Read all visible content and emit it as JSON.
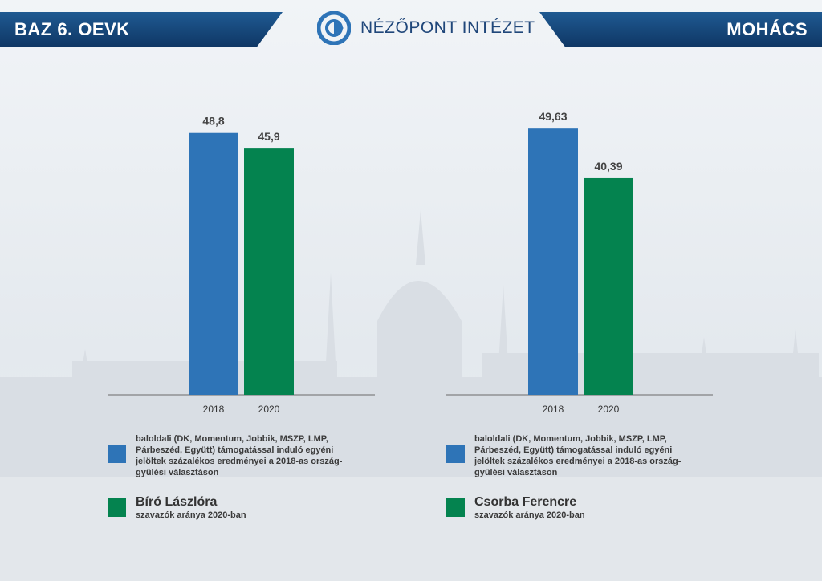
{
  "header": {
    "left_label": "BAZ 6. OEVK",
    "right_label": "MOHÁCS",
    "logo_text": "NÉZŐPONT INTÉZET"
  },
  "colors": {
    "blue": "#2e74b7",
    "green": "#04834f",
    "banner": "#174b80"
  },
  "chart_data": [
    {
      "type": "bar",
      "categories": [
        "2018",
        "2020"
      ],
      "values": [
        48.8,
        45.9
      ],
      "value_labels": [
        "48,8",
        "45,9"
      ],
      "colors": [
        "#2e74b7",
        "#04834f"
      ],
      "ylim": [
        0,
        60
      ]
    },
    {
      "type": "bar",
      "categories": [
        "2018",
        "2020"
      ],
      "values": [
        49.63,
        40.39
      ],
      "value_labels": [
        "49,63",
        "40,39"
      ],
      "colors": [
        "#2e74b7",
        "#04834f"
      ],
      "ylim": [
        0,
        60
      ]
    }
  ],
  "legends": {
    "left": {
      "blue_lines": [
        "baloldali (DK, Momentum, Jobbik, MSZP, LMP,",
        "Párbeszéd, Együtt) támogatással induló egyéni",
        "jelöltek százalékos eredményei a 2018-as ország-",
        "gyűlési választáson"
      ],
      "green_title": "Bíró Lászlóra",
      "green_sub": "szavazók aránya 2020-ban"
    },
    "right": {
      "blue_lines": [
        "baloldali (DK, Momentum, Jobbik, MSZP, LMP,",
        "Párbeszéd, Együtt) támogatással induló egyéni",
        "jelöltek százalékos eredményei a 2018-as ország-",
        "gyűlési választáson"
      ],
      "green_title": "Csorba Ferencre",
      "green_sub": "szavazók aránya 2020-ban"
    }
  }
}
